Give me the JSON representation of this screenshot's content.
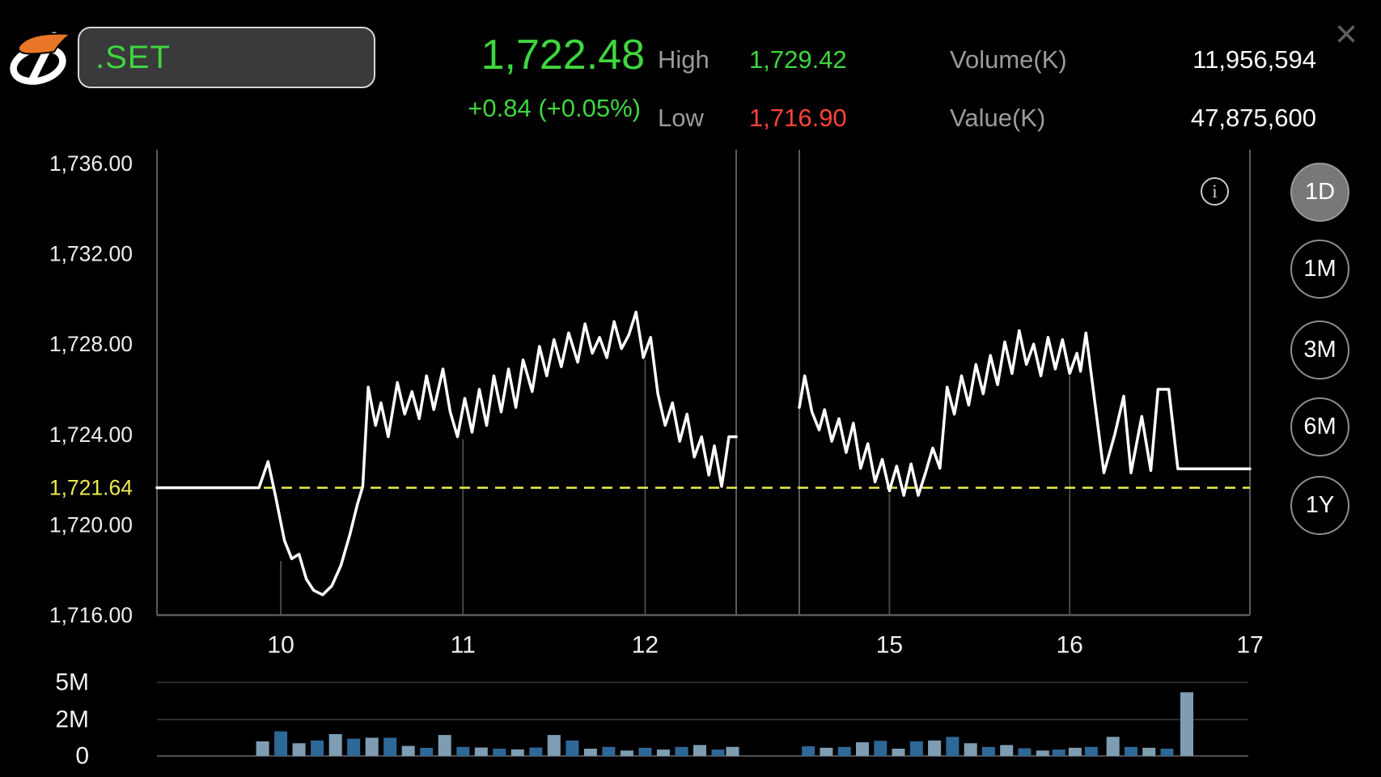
{
  "header": {
    "symbol": ".SET",
    "last": "1,722.48",
    "change": "+0.84 (+0.05%)",
    "high_label": "High",
    "high": "1,729.42",
    "low_label": "Low",
    "low": "1,716.90",
    "volume_label": "Volume(K)",
    "volume": "11,956,594",
    "value_label": "Value(K)",
    "value": "47,875,600",
    "close_icon": "×",
    "info_icon": "i"
  },
  "ranges": [
    {
      "label": "1D",
      "active": true
    },
    {
      "label": "1M",
      "active": false
    },
    {
      "label": "3M",
      "active": false
    },
    {
      "label": "6M",
      "active": false
    },
    {
      "label": "1Y",
      "active": false
    }
  ],
  "colors": {
    "up_green": "#3fd63f",
    "down_red": "#fb4438",
    "prev_close_yellow": "#ecec4e",
    "price_line": "#ffffff",
    "grid": "#474747",
    "session_line": "#5a5a5a",
    "axis": "#5a5a5a",
    "vol_grid": "#3a3a3a",
    "bar_up": "#7f9db2",
    "bar_down": "#2e6897",
    "tick_text": "#efefef"
  },
  "chart_data": {
    "type": "line",
    "symbol": ".SET",
    "y_axis": {
      "min": 1716,
      "max": 1736,
      "ticks": [
        {
          "label": "1,736.00",
          "value": 1736
        },
        {
          "label": "1,732.00",
          "value": 1732
        },
        {
          "label": "1,728.00",
          "value": 1728
        },
        {
          "label": "1,724.00",
          "value": 1724
        },
        {
          "label": "1,720.00",
          "value": 1720
        },
        {
          "label": "1,716.00",
          "value": 1716
        }
      ]
    },
    "prev_close": {
      "label": "1,721.64",
      "value": 1721.64
    },
    "x_axis": {
      "ticks": [
        {
          "label": "10",
          "t": 10
        },
        {
          "label": "11",
          "t": 11
        },
        {
          "label": "12",
          "t": 12
        },
        {
          "label": "15",
          "t": 15
        },
        {
          "label": "16",
          "t": 16
        },
        {
          "label": "17",
          "t": 17
        }
      ]
    },
    "session_breaks": [
      12.5,
      14.5
    ],
    "sessions": [
      {
        "name": "morning",
        "points": [
          [
            9.32,
            1721.64
          ],
          [
            9.88,
            1721.64
          ],
          [
            9.93,
            1722.8
          ],
          [
            9.97,
            1721.3
          ],
          [
            10.02,
            1719.3
          ],
          [
            10.06,
            1718.5
          ],
          [
            10.1,
            1718.7
          ],
          [
            10.14,
            1717.6
          ],
          [
            10.18,
            1717.1
          ],
          [
            10.23,
            1716.9
          ],
          [
            10.28,
            1717.3
          ],
          [
            10.33,
            1718.2
          ],
          [
            10.38,
            1719.6
          ],
          [
            10.42,
            1720.9
          ],
          [
            10.45,
            1721.7
          ],
          [
            10.48,
            1726.1
          ],
          [
            10.52,
            1724.4
          ],
          [
            10.55,
            1725.4
          ],
          [
            10.59,
            1723.9
          ],
          [
            10.64,
            1726.3
          ],
          [
            10.68,
            1724.9
          ],
          [
            10.72,
            1725.9
          ],
          [
            10.76,
            1724.7
          ],
          [
            10.8,
            1726.6
          ],
          [
            10.84,
            1725.1
          ],
          [
            10.89,
            1726.9
          ],
          [
            10.93,
            1725.0
          ],
          [
            10.97,
            1723.9
          ],
          [
            11.01,
            1725.6
          ],
          [
            11.05,
            1724.1
          ],
          [
            11.09,
            1726.0
          ],
          [
            11.13,
            1724.4
          ],
          [
            11.17,
            1726.6
          ],
          [
            11.21,
            1725.0
          ],
          [
            11.25,
            1726.9
          ],
          [
            11.29,
            1725.2
          ],
          [
            11.33,
            1727.3
          ],
          [
            11.38,
            1725.9
          ],
          [
            11.42,
            1727.9
          ],
          [
            11.46,
            1726.6
          ],
          [
            11.5,
            1728.2
          ],
          [
            11.54,
            1727.0
          ],
          [
            11.58,
            1728.5
          ],
          [
            11.63,
            1727.2
          ],
          [
            11.67,
            1728.9
          ],
          [
            11.71,
            1727.6
          ],
          [
            11.75,
            1728.3
          ],
          [
            11.79,
            1727.4
          ],
          [
            11.83,
            1729.0
          ],
          [
            11.87,
            1727.8
          ],
          [
            11.91,
            1728.4
          ],
          [
            11.95,
            1729.42
          ],
          [
            11.99,
            1727.4
          ],
          [
            12.03,
            1728.3
          ],
          [
            12.07,
            1725.8
          ],
          [
            12.11,
            1724.4
          ],
          [
            12.15,
            1725.4
          ],
          [
            12.19,
            1723.7
          ],
          [
            12.23,
            1724.9
          ],
          [
            12.27,
            1723.0
          ],
          [
            12.31,
            1723.9
          ],
          [
            12.35,
            1722.2
          ],
          [
            12.38,
            1723.5
          ],
          [
            12.42,
            1721.7
          ],
          [
            12.46,
            1723.9
          ],
          [
            12.5,
            1723.9
          ]
        ]
      },
      {
        "name": "afternoon",
        "points": [
          [
            14.5,
            1725.2
          ],
          [
            14.53,
            1726.6
          ],
          [
            14.57,
            1725.0
          ],
          [
            14.61,
            1724.2
          ],
          [
            14.64,
            1725.1
          ],
          [
            14.68,
            1723.7
          ],
          [
            14.72,
            1724.7
          ],
          [
            14.76,
            1723.2
          ],
          [
            14.8,
            1724.5
          ],
          [
            14.84,
            1722.5
          ],
          [
            14.88,
            1723.6
          ],
          [
            14.92,
            1721.9
          ],
          [
            14.96,
            1722.9
          ],
          [
            15.0,
            1721.5
          ],
          [
            15.04,
            1722.6
          ],
          [
            15.08,
            1721.3
          ],
          [
            15.12,
            1722.7
          ],
          [
            15.16,
            1721.3
          ],
          [
            15.2,
            1722.3
          ],
          [
            15.24,
            1723.4
          ],
          [
            15.28,
            1722.5
          ],
          [
            15.32,
            1726.1
          ],
          [
            15.36,
            1724.9
          ],
          [
            15.4,
            1726.6
          ],
          [
            15.44,
            1725.3
          ],
          [
            15.48,
            1727.1
          ],
          [
            15.52,
            1725.8
          ],
          [
            15.56,
            1727.5
          ],
          [
            15.6,
            1726.2
          ],
          [
            15.64,
            1728.1
          ],
          [
            15.68,
            1726.7
          ],
          [
            15.72,
            1728.6
          ],
          [
            15.76,
            1727.1
          ],
          [
            15.8,
            1728.0
          ],
          [
            15.84,
            1726.6
          ],
          [
            15.88,
            1728.3
          ],
          [
            15.92,
            1726.9
          ],
          [
            15.96,
            1728.2
          ],
          [
            16.0,
            1726.7
          ],
          [
            16.04,
            1727.6
          ],
          [
            16.06,
            1726.8
          ],
          [
            16.09,
            1728.5
          ],
          [
            16.19,
            1722.3
          ],
          [
            16.25,
            1724.0
          ],
          [
            16.3,
            1725.7
          ],
          [
            16.34,
            1722.3
          ],
          [
            16.4,
            1724.8
          ],
          [
            16.45,
            1722.4
          ],
          [
            16.49,
            1726.0
          ],
          [
            16.55,
            1726.0
          ],
          [
            16.6,
            1722.48
          ],
          [
            17.0,
            1722.48
          ]
        ]
      }
    ],
    "volume": {
      "unit": "M",
      "ticks": [
        {
          "label": "5M",
          "value": 5
        },
        {
          "label": "2M",
          "value": 2
        },
        {
          "label": "0",
          "value": 0
        }
      ],
      "bars": [
        [
          9.9,
          0.8,
          1
        ],
        [
          10.0,
          1.35,
          0
        ],
        [
          10.1,
          0.7,
          1
        ],
        [
          10.2,
          0.85,
          0
        ],
        [
          10.3,
          1.2,
          1
        ],
        [
          10.4,
          0.95,
          0
        ],
        [
          10.5,
          1.0,
          1
        ],
        [
          10.6,
          1.0,
          0
        ],
        [
          10.7,
          0.55,
          1
        ],
        [
          10.8,
          0.45,
          0
        ],
        [
          10.9,
          1.15,
          1
        ],
        [
          11.0,
          0.5,
          0
        ],
        [
          11.1,
          0.46,
          1
        ],
        [
          11.2,
          0.4,
          0
        ],
        [
          11.3,
          0.36,
          1
        ],
        [
          11.4,
          0.46,
          0
        ],
        [
          11.5,
          1.15,
          1
        ],
        [
          11.6,
          0.85,
          0
        ],
        [
          11.7,
          0.4,
          1
        ],
        [
          11.8,
          0.5,
          0
        ],
        [
          11.9,
          0.3,
          1
        ],
        [
          12.0,
          0.45,
          0
        ],
        [
          12.1,
          0.35,
          1
        ],
        [
          12.2,
          0.5,
          0
        ],
        [
          12.3,
          0.6,
          1
        ],
        [
          12.4,
          0.35,
          0
        ],
        [
          12.48,
          0.5,
          1
        ],
        [
          14.55,
          0.53,
          0
        ],
        [
          14.65,
          0.45,
          1
        ],
        [
          14.75,
          0.5,
          0
        ],
        [
          14.85,
          0.75,
          1
        ],
        [
          14.95,
          0.83,
          0
        ],
        [
          15.05,
          0.4,
          1
        ],
        [
          15.15,
          0.8,
          0
        ],
        [
          15.25,
          0.85,
          1
        ],
        [
          15.35,
          1.05,
          0
        ],
        [
          15.45,
          0.7,
          1
        ],
        [
          15.55,
          0.5,
          0
        ],
        [
          15.65,
          0.6,
          1
        ],
        [
          15.75,
          0.42,
          0
        ],
        [
          15.85,
          0.3,
          1
        ],
        [
          15.94,
          0.35,
          0
        ],
        [
          16.03,
          0.45,
          1
        ],
        [
          16.12,
          0.5,
          0
        ],
        [
          16.24,
          1.05,
          1
        ],
        [
          16.34,
          0.5,
          0
        ],
        [
          16.44,
          0.45,
          1
        ],
        [
          16.54,
          0.4,
          0
        ],
        [
          16.65,
          4.2,
          1
        ]
      ]
    }
  }
}
